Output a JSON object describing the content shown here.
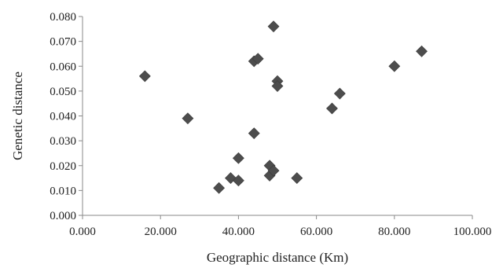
{
  "chart_data": {
    "type": "scatter",
    "title": "",
    "xlabel": "Geographic distance (Km)",
    "ylabel": "Genetic distance",
    "xlim": [
      0,
      100
    ],
    "ylim": [
      0,
      0.08
    ],
    "x_ticks": [
      "0.000",
      "20.000",
      "40.000",
      "60.000",
      "80.000",
      "100.000"
    ],
    "y_ticks": [
      "0.000",
      "0.010",
      "0.020",
      "0.030",
      "0.040",
      "0.050",
      "0.060",
      "0.070",
      "0.080"
    ],
    "grid": false,
    "legend": "none",
    "marker": "diamond",
    "marker_color": "#4d4d4d",
    "points": [
      {
        "x": 16.0,
        "y": 0.056
      },
      {
        "x": 27.0,
        "y": 0.039
      },
      {
        "x": 35.0,
        "y": 0.011
      },
      {
        "x": 38.0,
        "y": 0.015
      },
      {
        "x": 40.0,
        "y": 0.023
      },
      {
        "x": 40.0,
        "y": 0.014
      },
      {
        "x": 44.0,
        "y": 0.033
      },
      {
        "x": 44.0,
        "y": 0.062
      },
      {
        "x": 45.0,
        "y": 0.063
      },
      {
        "x": 48.0,
        "y": 0.02
      },
      {
        "x": 48.0,
        "y": 0.016
      },
      {
        "x": 49.0,
        "y": 0.018
      },
      {
        "x": 49.0,
        "y": 0.076
      },
      {
        "x": 50.0,
        "y": 0.054
      },
      {
        "x": 50.0,
        "y": 0.052
      },
      {
        "x": 55.0,
        "y": 0.015
      },
      {
        "x": 64.0,
        "y": 0.043
      },
      {
        "x": 66.0,
        "y": 0.049
      },
      {
        "x": 80.0,
        "y": 0.06
      },
      {
        "x": 87.0,
        "y": 0.066
      }
    ]
  }
}
